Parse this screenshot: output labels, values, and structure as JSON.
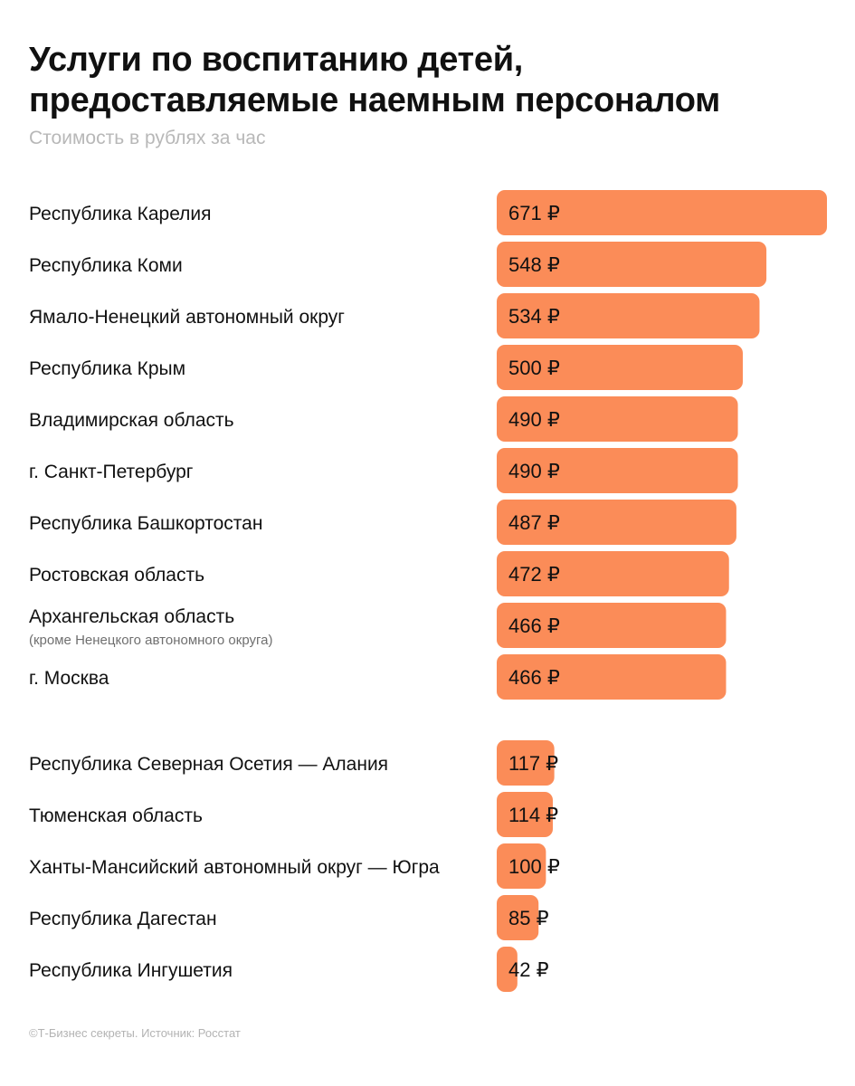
{
  "header": {
    "title_line1": "Услуги по воспитанию детей,",
    "title_line2": "предоставляемые наемным персоналом",
    "subtitle": "Стоимость в рублях за час"
  },
  "footer": {
    "source": "©Т-Бизнес секреты. Источник: Росстат"
  },
  "colors": {
    "bar": "#fb8c58",
    "text": "#111111",
    "note": "#6f6f6f"
  },
  "chart_data": {
    "type": "bar",
    "orientation": "horizontal",
    "currency_symbol": "₽",
    "grid": false,
    "legend": "none",
    "groups": [
      {
        "rows": [
          {
            "label": "Республика Карелия",
            "value": 671
          },
          {
            "label": "Республика Коми",
            "value": 548
          },
          {
            "label": "Ямало-Ненецкий автономный округ",
            "value": 534
          },
          {
            "label": "Республика Крым",
            "value": 500
          },
          {
            "label": "Владимирская область",
            "value": 490
          },
          {
            "label": "г. Санкт-Петербург",
            "value": 490
          },
          {
            "label": "Республика Башкортостан",
            "value": 487
          },
          {
            "label": "Ростовская область",
            "value": 472
          },
          {
            "label": "Архангельская область",
            "note": "(кроме Ненецкого автономного округа)",
            "value": 466
          },
          {
            "label": "г. Москва",
            "value": 466
          }
        ]
      },
      {
        "rows": [
          {
            "label": "Республика Северная Осетия — Алания",
            "value": 117
          },
          {
            "label": "Тюменская область",
            "value": 114
          },
          {
            "label": "Ханты-Мансийский автономный округ — Югра",
            "value": 100
          },
          {
            "label": "Республика Дагестан",
            "value": 85
          },
          {
            "label": "Республика Ингушетия",
            "value": 42
          }
        ]
      }
    ]
  }
}
